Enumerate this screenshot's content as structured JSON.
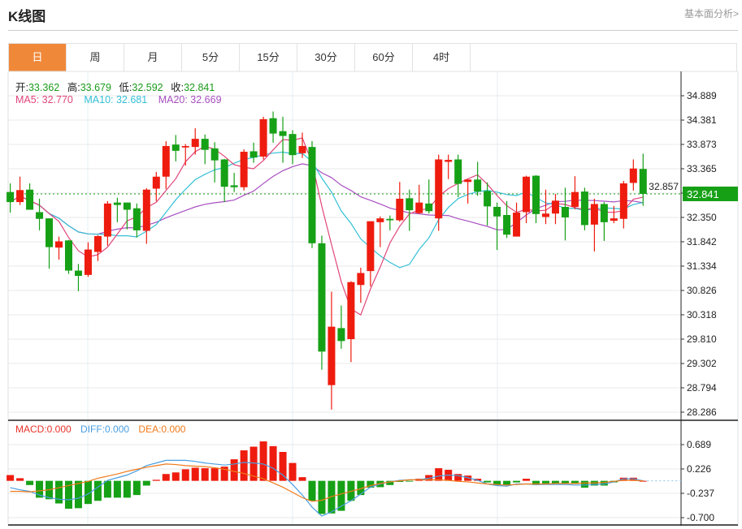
{
  "header": {
    "title": "K线图",
    "link": "基本面分析>"
  },
  "tabs": [
    {
      "label": "日",
      "active": true
    },
    {
      "label": "周"
    },
    {
      "label": "月"
    },
    {
      "label": "5分"
    },
    {
      "label": "15分"
    },
    {
      "label": "30分"
    },
    {
      "label": "60分"
    },
    {
      "label": "4时"
    }
  ],
  "quote": {
    "open_label": "开:",
    "open": "33.362",
    "high_label": "高:",
    "high": "33.679",
    "low_label": "低:",
    "low": "32.592",
    "close_label": "收:",
    "close": "32.841"
  },
  "ma": {
    "ma5": "MA5: 32.770",
    "ma10": "MA10: 32.681",
    "ma20": "MA20: 32.669"
  },
  "macd_legend": {
    "macd": "MACD:0.000",
    "diff": "DIFF:0.000",
    "dea": "DEA:0.000"
  },
  "colors": {
    "up": "#ee1c0e",
    "down": "#16a016",
    "ma5": "#e0457b",
    "ma10": "#34c0d6",
    "ma20": "#a84fc0",
    "diff": "#4a9ee0",
    "dea": "#f07a1a",
    "active_tab": "#f0883a",
    "last_price": "#16a016"
  },
  "chart_data": [
    {
      "type": "candlestick",
      "price_axis_ticks": [
        "34.889",
        "34.381",
        "33.873",
        "33.365",
        "32.857",
        "32.350",
        "31.842",
        "31.334",
        "30.826",
        "30.318",
        "29.810",
        "29.302",
        "28.794",
        "28.286"
      ],
      "ylim": [
        28.286,
        34.889
      ],
      "last_price": "32.841",
      "grid": true,
      "ohlc": [
        [
          32.88,
          33.06,
          32.45,
          32.67
        ],
        [
          32.67,
          33.2,
          32.61,
          32.92
        ],
        [
          32.93,
          33.06,
          32.51,
          32.51
        ],
        [
          32.46,
          32.74,
          32.08,
          32.32
        ],
        [
          32.33,
          32.33,
          31.28,
          31.73
        ],
        [
          31.72,
          31.95,
          31.47,
          31.85
        ],
        [
          31.87,
          31.88,
          31.17,
          31.24
        ],
        [
          31.24,
          31.38,
          30.81,
          31.13
        ],
        [
          31.15,
          31.83,
          31.11,
          31.68
        ],
        [
          31.63,
          31.98,
          31.44,
          31.96
        ],
        [
          31.95,
          32.69,
          31.76,
          32.64
        ],
        [
          32.66,
          32.76,
          32.25,
          32.61
        ],
        [
          32.66,
          32.66,
          32.1,
          32.51
        ],
        [
          32.54,
          32.64,
          31.93,
          32.08
        ],
        [
          32.07,
          32.96,
          31.8,
          32.93
        ],
        [
          32.95,
          33.3,
          32.69,
          33.2
        ],
        [
          33.2,
          33.94,
          32.94,
          33.84
        ],
        [
          33.87,
          34.07,
          33.52,
          33.74
        ],
        [
          33.81,
          33.88,
          33.43,
          33.84
        ],
        [
          33.82,
          34.21,
          33.66,
          33.99
        ],
        [
          33.99,
          34.08,
          33.46,
          33.76
        ],
        [
          33.79,
          33.92,
          33.08,
          33.54
        ],
        [
          33.56,
          33.57,
          32.67,
          32.99
        ],
        [
          33.02,
          33.28,
          32.88,
          32.98
        ],
        [
          32.98,
          33.77,
          32.91,
          33.72
        ],
        [
          33.73,
          33.91,
          33.49,
          33.6
        ],
        [
          33.62,
          34.45,
          33.56,
          34.4
        ],
        [
          34.42,
          34.56,
          33.91,
          34.1
        ],
        [
          34.15,
          34.45,
          33.49,
          34.05
        ],
        [
          34.09,
          34.17,
          33.46,
          33.65
        ],
        [
          33.69,
          34.12,
          33.59,
          33.84
        ],
        [
          33.82,
          33.94,
          31.71,
          31.81
        ],
        [
          31.81,
          31.97,
          29.17,
          29.55
        ],
        [
          28.85,
          30.8,
          28.34,
          30.07
        ],
        [
          30.04,
          30.51,
          29.61,
          29.77
        ],
        [
          29.81,
          31.02,
          29.33,
          31.0
        ],
        [
          30.94,
          31.3,
          30.57,
          31.19
        ],
        [
          31.23,
          32.27,
          30.91,
          32.27
        ],
        [
          32.25,
          32.37,
          31.73,
          32.33
        ],
        [
          32.32,
          32.39,
          32.08,
          32.29
        ],
        [
          32.29,
          33.09,
          32.26,
          32.74
        ],
        [
          32.75,
          32.93,
          32.07,
          32.5
        ],
        [
          32.44,
          33.03,
          32.42,
          32.66
        ],
        [
          32.64,
          33.14,
          32.43,
          32.48
        ],
        [
          32.33,
          33.66,
          32.07,
          33.56
        ],
        [
          33.51,
          33.66,
          33.15,
          33.55
        ],
        [
          33.56,
          33.66,
          32.77,
          33.05
        ],
        [
          33.09,
          33.14,
          32.64,
          33.14
        ],
        [
          33.14,
          33.51,
          32.8,
          32.89
        ],
        [
          32.9,
          33.08,
          32.18,
          32.58
        ],
        [
          32.57,
          32.66,
          31.67,
          32.37
        ],
        [
          32.4,
          32.69,
          31.92,
          31.99
        ],
        [
          31.95,
          32.66,
          31.95,
          32.45
        ],
        [
          32.46,
          33.22,
          32.23,
          33.2
        ],
        [
          33.22,
          33.23,
          32.23,
          32.42
        ],
        [
          32.36,
          32.93,
          32.21,
          32.43
        ],
        [
          32.43,
          32.84,
          32.21,
          32.7
        ],
        [
          32.57,
          32.97,
          31.87,
          32.35
        ],
        [
          32.57,
          33.21,
          32.52,
          32.88
        ],
        [
          32.89,
          32.97,
          32.08,
          32.19
        ],
        [
          32.2,
          32.74,
          31.64,
          32.63
        ],
        [
          32.63,
          32.67,
          31.86,
          32.25
        ],
        [
          32.28,
          32.59,
          32.23,
          32.33
        ],
        [
          32.32,
          33.11,
          32.12,
          33.06
        ],
        [
          33.07,
          33.56,
          32.91,
          33.37
        ],
        [
          33.362,
          33.679,
          32.592,
          32.841
        ]
      ]
    },
    {
      "type": "bar+line",
      "axis_ticks": [
        "0.689",
        "0.226",
        "-0.237",
        "-0.700"
      ],
      "ylim": [
        -0.75,
        0.78
      ],
      "macd": [
        0.11,
        0.05,
        -0.08,
        -0.32,
        -0.35,
        -0.43,
        -0.53,
        -0.52,
        -0.44,
        -0.38,
        -0.32,
        -0.32,
        -0.32,
        -0.27,
        -0.09,
        0.02,
        0.13,
        0.16,
        0.22,
        0.25,
        0.24,
        0.24,
        0.27,
        0.41,
        0.58,
        0.65,
        0.75,
        0.66,
        0.55,
        0.34,
        0.07,
        -0.38,
        -0.63,
        -0.62,
        -0.57,
        -0.38,
        -0.27,
        -0.13,
        -0.12,
        -0.08,
        -0.02,
        -0.01,
        0.04,
        0.11,
        0.24,
        0.21,
        0.13,
        0.1,
        0.04,
        -0.03,
        -0.08,
        -0.08,
        -0.03,
        0.04,
        -0.08,
        -0.05,
        -0.05,
        -0.05,
        -0.06,
        -0.13,
        -0.09,
        -0.09,
        -0.03,
        0.06,
        0.06,
        0.0
      ],
      "diff": [
        -0.13,
        -0.17,
        -0.2,
        -0.27,
        -0.32,
        -0.35,
        -0.36,
        -0.33,
        -0.25,
        -0.12,
        0.01,
        0.06,
        0.11,
        0.19,
        0.29,
        0.34,
        0.39,
        0.39,
        0.39,
        0.37,
        0.34,
        0.32,
        0.3,
        0.32,
        0.35,
        0.34,
        0.32,
        0.24,
        0.11,
        -0.07,
        -0.27,
        -0.5,
        -0.67,
        -0.59,
        -0.48,
        -0.38,
        -0.25,
        -0.12,
        -0.06,
        -0.02,
        0.01,
        0.02,
        0.02,
        0.05,
        0.09,
        0.11,
        0.1,
        0.06,
        0.01,
        -0.06,
        -0.09,
        -0.1,
        -0.06,
        -0.06,
        -0.07,
        -0.07,
        -0.07,
        -0.07,
        -0.08,
        -0.08,
        -0.07,
        -0.06,
        -0.02,
        0.04,
        0.04,
        0.0
      ],
      "dea": [
        -0.2,
        -0.2,
        -0.21,
        -0.19,
        -0.17,
        -0.13,
        -0.09,
        -0.05,
        -0.01,
        0.05,
        0.09,
        0.13,
        0.18,
        0.22,
        0.26,
        0.29,
        0.32,
        0.31,
        0.29,
        0.28,
        0.27,
        0.25,
        0.22,
        0.18,
        0.14,
        0.09,
        0.04,
        -0.04,
        -0.12,
        -0.22,
        -0.32,
        -0.39,
        -0.37,
        -0.3,
        -0.25,
        -0.2,
        -0.15,
        -0.09,
        -0.05,
        -0.02,
        0.0,
        0.02,
        0.02,
        0.02,
        0.02,
        0.01,
        -0.01,
        -0.02,
        -0.04,
        -0.06,
        -0.07,
        -0.08,
        -0.07,
        -0.06,
        -0.06,
        -0.06,
        -0.05,
        -0.05,
        -0.05,
        -0.04,
        -0.04,
        -0.03,
        -0.01,
        0.01,
        0.01,
        0.0
      ]
    }
  ]
}
